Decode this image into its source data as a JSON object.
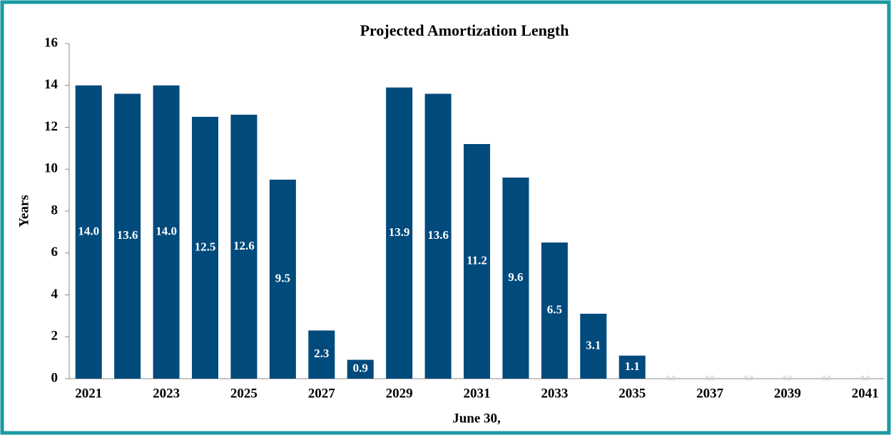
{
  "chart_data": {
    "type": "bar",
    "title": "Projected Amortization  Length",
    "x_label": "June 30,",
    "y_label": "Years",
    "categories": [
      "2021",
      null,
      "2023",
      null,
      "2025",
      null,
      "2027",
      null,
      "2029",
      null,
      "2031",
      null,
      "2033",
      null,
      "2035",
      null,
      "2037",
      null,
      "2039",
      null,
      "2041"
    ],
    "values": [
      14.0,
      13.6,
      14.0,
      12.5,
      12.6,
      9.5,
      2.3,
      0.9,
      13.9,
      13.6,
      11.2,
      9.6,
      6.5,
      3.1,
      1.1,
      0,
      0,
      0,
      0,
      0,
      0
    ],
    "value_labels": [
      "14.0",
      "13.6",
      "14.0",
      "12.5",
      "12.6",
      "9.5",
      "2.3",
      "0.9",
      "13.9",
      "13.6",
      "11.2",
      "9.6",
      "6.5",
      "3.1",
      "1.1",
      "0.0",
      "0.0",
      "0.0",
      "0.0",
      "0.0",
      "0.0"
    ],
    "color": "#004a7c",
    "ylim": [
      0,
      16
    ],
    "yticks": [
      0,
      2,
      4,
      6,
      8,
      10,
      12,
      14,
      16
    ],
    "grid": false
  }
}
